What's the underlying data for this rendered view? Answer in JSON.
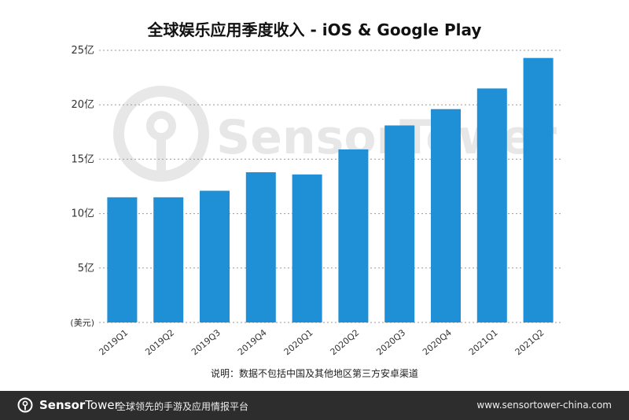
{
  "chart_data": {
    "type": "bar",
    "title": "全球娱乐应用季度收入 - iOS & Google Play",
    "unit_label": "(美元)",
    "categories": [
      "2019Q1",
      "2019Q2",
      "2019Q3",
      "2019Q4",
      "2020Q1",
      "2020Q2",
      "2020Q3",
      "2020Q4",
      "2021Q1",
      "2021Q2"
    ],
    "values": [
      11.5,
      11.5,
      12.1,
      13.8,
      13.6,
      15.9,
      18.1,
      19.6,
      21.5,
      24.3
    ],
    "ylim": [
      0,
      25
    ],
    "yticks": [
      {
        "value": 0,
        "label": ""
      },
      {
        "value": 5,
        "label": "5亿"
      },
      {
        "value": 10,
        "label": "10亿"
      },
      {
        "value": 15,
        "label": "15亿"
      },
      {
        "value": 20,
        "label": "20亿"
      },
      {
        "value": 25,
        "label": "25亿"
      }
    ],
    "grid": true,
    "bar_color": "#1f8fd6",
    "footnote": "说明：数据不包括中国及其他地区第三方安卓渠道",
    "watermark": "SensorTower"
  },
  "footer": {
    "brand_first": "Sensor",
    "brand_second": "Tower",
    "tagline": "全球领先的手游及应用情报平台",
    "url": "www.sensortower-china.com",
    "background": "#2d2d2d"
  }
}
